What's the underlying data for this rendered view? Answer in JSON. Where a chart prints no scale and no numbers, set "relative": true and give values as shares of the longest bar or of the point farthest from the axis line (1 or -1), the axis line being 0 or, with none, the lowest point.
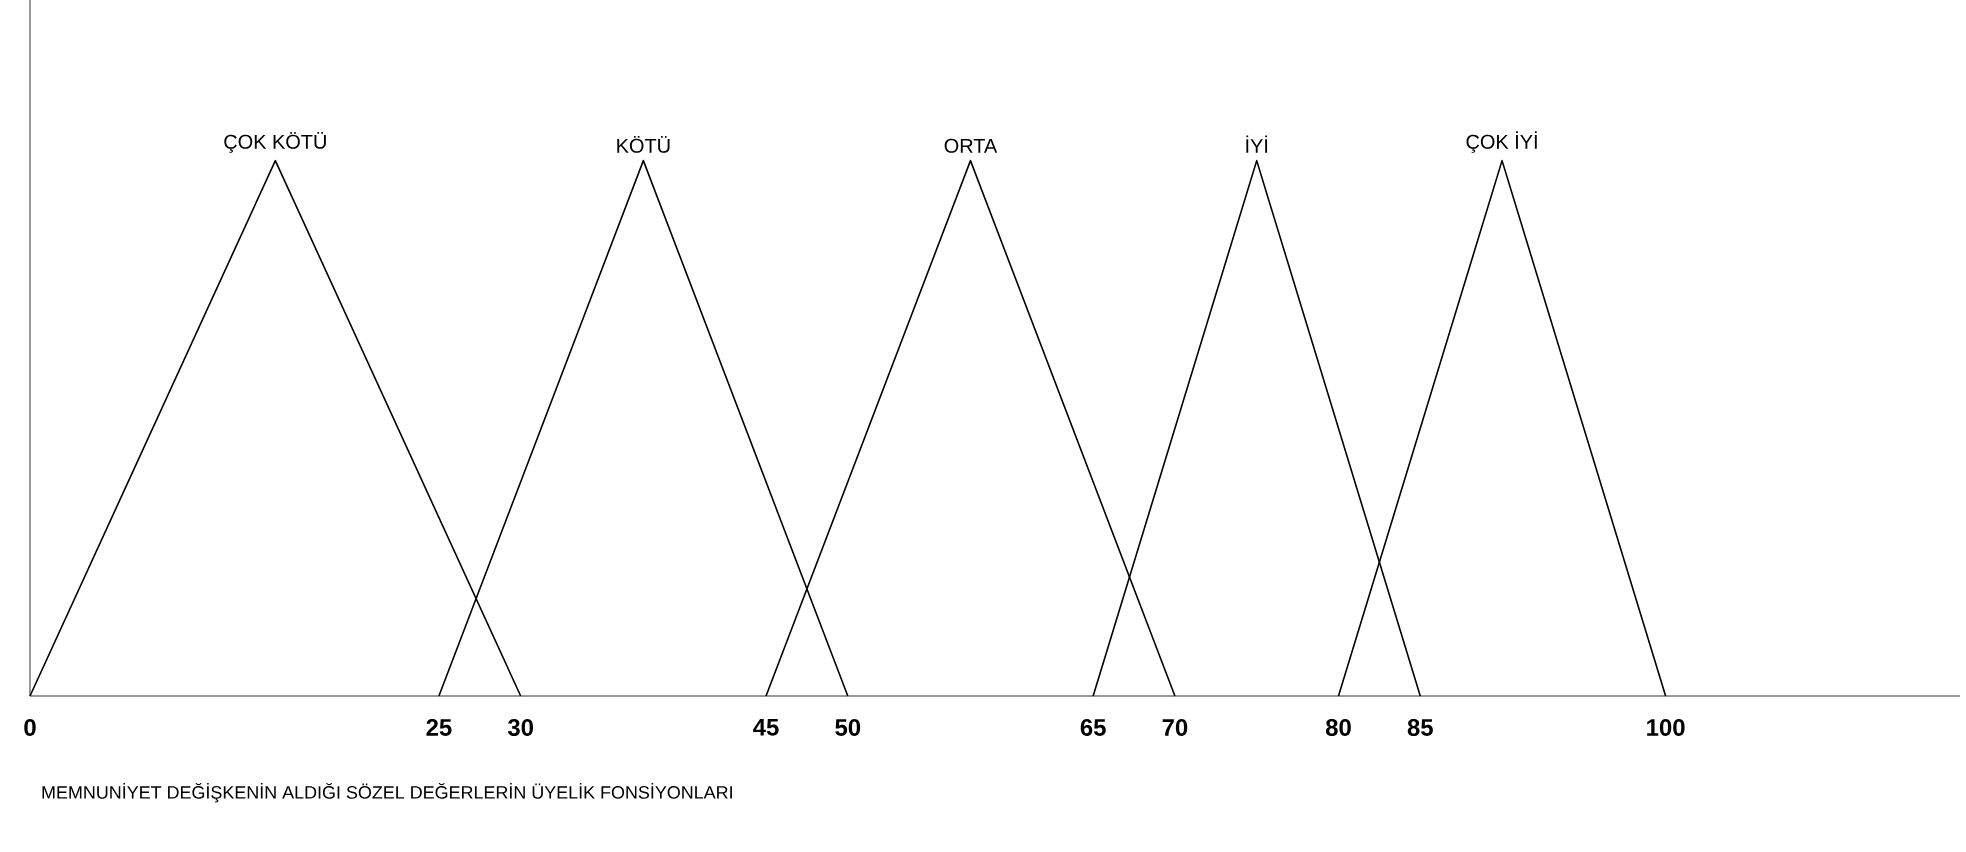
{
  "chart_data": {
    "type": "line",
    "xlabel": "MEMNUNİYET DEĞİŞKENİN ALDIĞI SÖZEL DEĞERLERİN ÜYELİK FONSİYONLARI",
    "relative": true,
    "xlim": [
      0,
      118
    ],
    "xticks": [
      0,
      25,
      30,
      45,
      50,
      65,
      70,
      80,
      85,
      100
    ],
    "legend": false,
    "grid": false,
    "marker": "none",
    "line_style": "solid",
    "series": [
      {
        "name": "ÇOK KÖTÜ",
        "color": "#000000",
        "x": [
          0,
          15,
          30
        ],
        "values": [
          0,
          1,
          0
        ]
      },
      {
        "name": "KÖTÜ",
        "color": "#000000",
        "x": [
          25,
          37.5,
          50
        ],
        "values": [
          0,
          1,
          0
        ]
      },
      {
        "name": "ORTA",
        "color": "#000000",
        "x": [
          45,
          57.5,
          70
        ],
        "values": [
          0,
          1,
          0
        ]
      },
      {
        "name": "İYİ",
        "color": "#000000",
        "x": [
          65,
          75,
          85
        ],
        "values": [
          0,
          1,
          0
        ]
      },
      {
        "name": "ÇOK İYİ",
        "color": "#000000",
        "x": [
          80,
          90,
          100
        ],
        "values": [
          0,
          1,
          0
        ]
      }
    ]
  }
}
